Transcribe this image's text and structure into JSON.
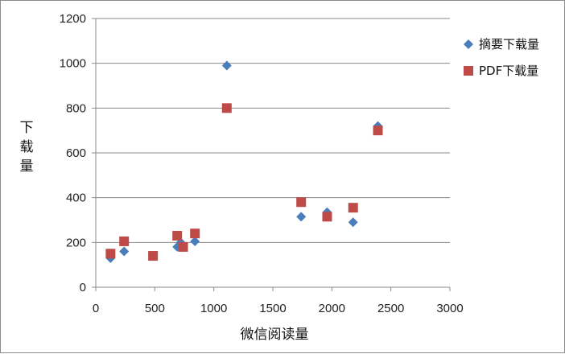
{
  "chart_data": {
    "type": "scatter",
    "title": "",
    "xlabel": "微信阅读量",
    "ylabel": "下载量",
    "xlim": [
      0,
      3000
    ],
    "ylim": [
      0,
      1200
    ],
    "xticks": [
      0,
      500,
      1000,
      1500,
      2000,
      2500,
      3000
    ],
    "yticks": [
      0,
      200,
      400,
      600,
      800,
      1000,
      1200
    ],
    "grid": "horizontal",
    "legend_position": "right",
    "series": [
      {
        "name": "摘要下载量",
        "marker": "diamond",
        "color": "#4a7ebb",
        "points": [
          {
            "x": 125,
            "y": 130
          },
          {
            "x": 240,
            "y": 160
          },
          {
            "x": 485,
            "y": 140
          },
          {
            "x": 690,
            "y": 180
          },
          {
            "x": 720,
            "y": 200
          },
          {
            "x": 840,
            "y": 205
          },
          {
            "x": 1110,
            "y": 990
          },
          {
            "x": 1740,
            "y": 315
          },
          {
            "x": 1960,
            "y": 335
          },
          {
            "x": 2180,
            "y": 290
          },
          {
            "x": 2390,
            "y": 720
          }
        ]
      },
      {
        "name": "PDF下载量",
        "marker": "square",
        "color": "#be4b48",
        "points": [
          {
            "x": 125,
            "y": 150
          },
          {
            "x": 240,
            "y": 205
          },
          {
            "x": 485,
            "y": 140
          },
          {
            "x": 690,
            "y": 230
          },
          {
            "x": 740,
            "y": 180
          },
          {
            "x": 840,
            "y": 240
          },
          {
            "x": 1110,
            "y": 800
          },
          {
            "x": 1740,
            "y": 380
          },
          {
            "x": 1960,
            "y": 315
          },
          {
            "x": 2180,
            "y": 355
          },
          {
            "x": 2390,
            "y": 700
          }
        ]
      }
    ]
  }
}
